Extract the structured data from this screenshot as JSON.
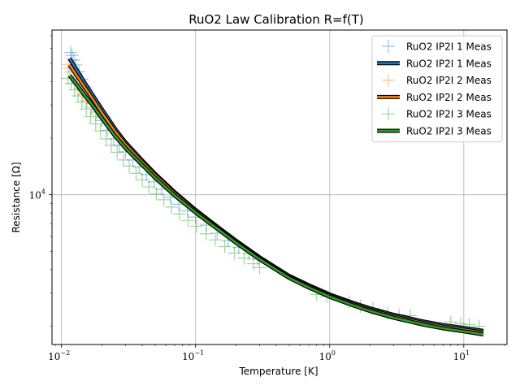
{
  "chart_data": {
    "type": "line",
    "title": "RuO2 Law Calibration R=f(T)",
    "xlabel": "Temperature [K]",
    "ylabel": "Resistance [Ω]",
    "xscale": "log",
    "yscale": "log",
    "xlim": [
      0.0085,
      21
    ],
    "ylim": [
      1600,
      75000
    ],
    "grid": true,
    "legend_position": "top-right",
    "x_ticks": [
      {
        "value": 0.01,
        "base": "10",
        "exp": "−2"
      },
      {
        "value": 0.1,
        "base": "10",
        "exp": "−1"
      },
      {
        "value": 1,
        "base": "10",
        "exp": "0"
      },
      {
        "value": 10,
        "base": "10",
        "exp": "1"
      }
    ],
    "y_ticks": [
      {
        "value": 10000,
        "base": "10",
        "exp": "4"
      }
    ],
    "series": [
      {
        "name": "RuO2 IP2I 1 Meas",
        "kind": "scatter",
        "color": "#1f77b4",
        "x": [
          0.0117,
          0.012,
          0.0124,
          0.0128,
          0.0135,
          0.0142,
          0.015,
          0.016,
          0.0172,
          0.0185,
          0.02,
          0.022,
          0.0245,
          0.027,
          0.03,
          0.034,
          0.038,
          0.043,
          0.049,
          0.056,
          0.065,
          0.075,
          0.087,
          0.1,
          0.12,
          0.145,
          0.175,
          0.21,
          0.25,
          0.29
        ],
        "y": [
          57000,
          55000,
          52000,
          49000,
          45000,
          41000,
          37500,
          34000,
          30500,
          27500,
          24800,
          22000,
          19800,
          18300,
          16900,
          15300,
          14000,
          12800,
          11700,
          10700,
          9700,
          8900,
          8200,
          7600,
          6900,
          6250,
          5700,
          5250,
          4850,
          4550
        ]
      },
      {
        "name": "RuO2 IP2I 1 Meas",
        "kind": "line",
        "color": "#1f77b4",
        "x": [
          0.0115,
          0.013,
          0.015,
          0.017,
          0.02,
          0.025,
          0.03,
          0.04,
          0.05,
          0.07,
          0.1,
          0.15,
          0.2,
          0.3,
          0.5,
          0.7,
          1,
          1.5,
          2,
          3,
          5,
          7,
          10,
          14
        ],
        "y": [
          53000,
          46000,
          39000,
          34000,
          28500,
          22500,
          19000,
          15200,
          12900,
          10300,
          8300,
          6650,
          5700,
          4650,
          3700,
          3300,
          2950,
          2660,
          2490,
          2300,
          2120,
          2030,
          1960,
          1890
        ]
      },
      {
        "name": "RuO2 IP2I 2 Meas",
        "kind": "scatter",
        "color": "#ff7f0e",
        "x": [
          0.0112,
          0.0115,
          0.0119,
          0.0124,
          0.013,
          0.0137,
          0.0145,
          0.0155,
          0.0167,
          0.018
        ],
        "y": [
          49000,
          47000,
          45000,
          42000,
          39000,
          36500,
          34000,
          31500,
          29000,
          26800
        ]
      },
      {
        "name": "RuO2 IP2I 2 Meas",
        "kind": "line",
        "color": "#ff7f0e",
        "x": [
          0.0115,
          0.013,
          0.015,
          0.017,
          0.02,
          0.025,
          0.03,
          0.04,
          0.05,
          0.07,
          0.1,
          0.15,
          0.2,
          0.3,
          0.5,
          0.7,
          1,
          1.5,
          2,
          3,
          5,
          7,
          10,
          14
        ],
        "y": [
          49000,
          43000,
          37000,
          32500,
          27300,
          21800,
          18500,
          14900,
          12700,
          10150,
          8200,
          6580,
          5640,
          4600,
          3660,
          3260,
          2910,
          2620,
          2450,
          2260,
          2080,
          1990,
          1920,
          1850
        ]
      },
      {
        "name": "RuO2 IP2I 3 Meas",
        "kind": "scatter",
        "color": "#2ca02c",
        "x": [
          0.0112,
          0.0118,
          0.0125,
          0.0133,
          0.0142,
          0.0153,
          0.0165,
          0.018,
          0.0195,
          0.0215,
          0.0235,
          0.026,
          0.029,
          0.032,
          0.036,
          0.04,
          0.045,
          0.051,
          0.058,
          0.066,
          0.076,
          0.088,
          0.102,
          0.12,
          0.14,
          0.165,
          0.195,
          0.23,
          0.27,
          0.3,
          0.8,
          0.95,
          1.4,
          1.7,
          2.1,
          2.7,
          3.3,
          4.0,
          8.0,
          9.5,
          11.0,
          13.0
        ],
        "y": [
          41500,
          39000,
          36000,
          33500,
          31000,
          28500,
          26000,
          23800,
          21800,
          19800,
          18300,
          16800,
          15300,
          14200,
          13000,
          12000,
          11000,
          10100,
          9400,
          8600,
          7900,
          7300,
          6800,
          6200,
          5750,
          5300,
          4900,
          4600,
          4300,
          4100,
          2950,
          2880,
          2700,
          2560,
          2480,
          2340,
          2300,
          2280,
          2110,
          2070,
          2040,
          2000
        ]
      },
      {
        "name": "RuO2 IP2I 3 Meas",
        "kind": "line",
        "color": "#2ca02c",
        "x": [
          0.0115,
          0.013,
          0.015,
          0.017,
          0.02,
          0.025,
          0.03,
          0.04,
          0.05,
          0.07,
          0.1,
          0.15,
          0.2,
          0.3,
          0.5,
          0.7,
          1,
          1.5,
          2,
          3,
          5,
          7,
          10,
          14
        ],
        "y": [
          43000,
          38500,
          33500,
          30000,
          25500,
          20600,
          17700,
          14400,
          12300,
          9900,
          8050,
          6480,
          5560,
          4540,
          3610,
          3210,
          2870,
          2580,
          2410,
          2220,
          2040,
          1950,
          1880,
          1810
        ]
      }
    ]
  }
}
